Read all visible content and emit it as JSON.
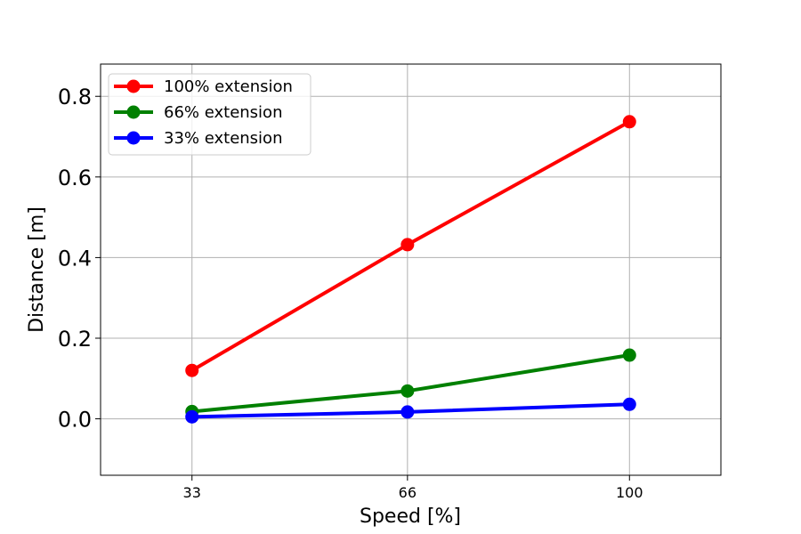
{
  "chart_data": {
    "type": "line",
    "x": [
      33,
      66,
      100
    ],
    "xticks": [
      "33",
      "66",
      "100"
    ],
    "xlabel": "Speed [%]",
    "ylabel": "Distance [m]",
    "xlim": [
      19,
      114
    ],
    "ylim": [
      -0.14,
      0.88
    ],
    "yticks": [
      "0.0",
      "0.2",
      "0.4",
      "0.6",
      "0.8"
    ],
    "yticks_values": [
      0.0,
      0.2,
      0.4,
      0.6,
      0.8
    ],
    "grid": true,
    "legend_position": "top-left",
    "series": [
      {
        "name": "100% extension",
        "color": "#ff0000",
        "values": [
          0.12,
          0.432,
          0.737
        ]
      },
      {
        "name": "66% extension",
        "color": "#008000",
        "values": [
          0.018,
          0.069,
          0.158
        ]
      },
      {
        "name": "33% extension",
        "color": "#0000ff",
        "values": [
          0.005,
          0.017,
          0.036
        ]
      }
    ]
  }
}
